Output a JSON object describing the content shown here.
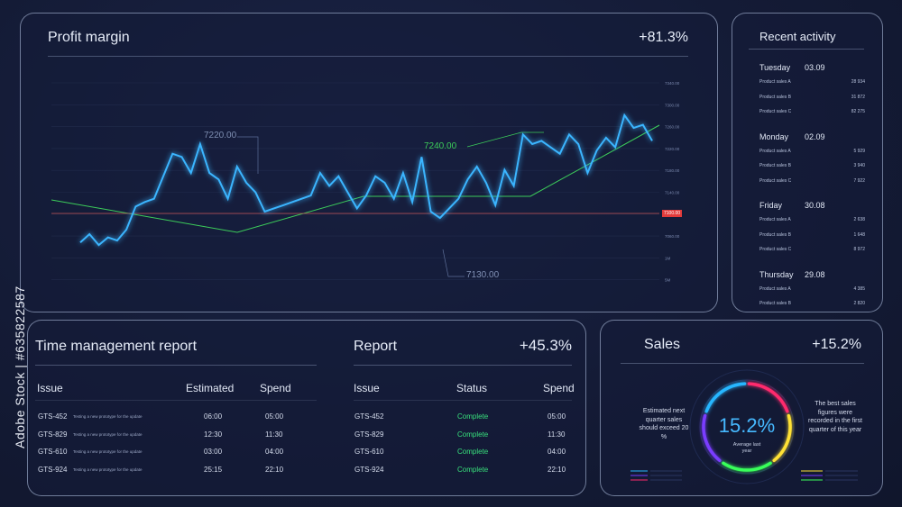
{
  "profit": {
    "title": "Profit margin",
    "value": "+81.3%",
    "annotations": {
      "high_left": "7220.00",
      "high_right": "7240.00",
      "low": "7130.00"
    },
    "yticks": [
      "7340.00",
      "7300.00",
      "7260.00",
      "7220.00",
      "7180.00",
      "7140.00",
      "7100.00",
      "7060.00",
      "1M",
      "5M"
    ],
    "current_price": "7100.00"
  },
  "chart_data": {
    "type": "line",
    "title": "Profit margin",
    "series": [
      {
        "values": [
          7082,
          7095,
          7078,
          7090,
          7085,
          7102,
          7138,
          7145,
          7150,
          7185,
          7220,
          7215,
          7190,
          7235,
          7190,
          7180,
          7150,
          7200,
          7175,
          7160,
          7130,
          7135,
          7140,
          7145,
          7150,
          7155,
          7190,
          7170,
          7185,
          7160,
          7135,
          7155,
          7185,
          7175,
          7150,
          7190,
          7145,
          7215,
          7130,
          7120,
          7135,
          7150,
          7180,
          7200,
          7175,
          7140,
          7195,
          7170,
          7250,
          7235,
          7240,
          7230,
          7220,
          7250,
          7235,
          7190,
          7225,
          7245,
          7230,
          7280,
          7260,
          7265,
          7240
        ]
      }
    ],
    "ylim": [
      7060,
      7340
    ],
    "grid": true
  },
  "recent": {
    "title": "Recent activity",
    "days": [
      {
        "day": "Tuesday",
        "date": "03.09",
        "rows": [
          [
            "Product sales A",
            "28 934"
          ],
          [
            "Product sales B",
            "31 872"
          ],
          [
            "Product sales C",
            "82 275"
          ]
        ]
      },
      {
        "day": "Monday",
        "date": "02.09",
        "rows": [
          [
            "Product sales A",
            "5 929"
          ],
          [
            "Product sales B",
            "3 940"
          ],
          [
            "Product sales C",
            "7 922"
          ]
        ]
      },
      {
        "day": "Friday",
        "date": "30.08",
        "rows": [
          [
            "Product sales A",
            "2 638"
          ],
          [
            "Product sales B",
            "1 648"
          ],
          [
            "Product sales C",
            "8 972"
          ]
        ]
      },
      {
        "day": "Thursday",
        "date": "29.08",
        "rows": [
          [
            "Product sales A",
            "4 385"
          ],
          [
            "Product sales B",
            "2 820"
          ]
        ]
      }
    ]
  },
  "time": {
    "title": "Time management report",
    "headers": {
      "issue": "Issue",
      "estimated": "Estimated",
      "spend": "Spend"
    },
    "rows": [
      {
        "issue": "GTS-452",
        "desc": "Testing a new prototype for the update",
        "estimated": "06:00",
        "spend": "05:00"
      },
      {
        "issue": "GTS-829",
        "desc": "Testing a new prototype for the update",
        "estimated": "12:30",
        "spend": "11:30"
      },
      {
        "issue": "GTS-610",
        "desc": "Testing a new prototype for the update",
        "estimated": "03:00",
        "spend": "04:00"
      },
      {
        "issue": "GTS-924",
        "desc": "Testing a new prototype for the update",
        "estimated": "25:15",
        "spend": "22:10"
      }
    ]
  },
  "report": {
    "title": "Report",
    "value": "+45.3%",
    "headers": {
      "issue": "Issue",
      "status": "Status",
      "spend": "Spend"
    },
    "rows": [
      {
        "issue": "GTS-452",
        "status": "Complete",
        "spend": "05:00"
      },
      {
        "issue": "GTS-829",
        "status": "Complete",
        "spend": "11:30"
      },
      {
        "issue": "GTS-610",
        "status": "Complete",
        "spend": "04:00"
      },
      {
        "issue": "GTS-924",
        "status": "Complete",
        "spend": "22:10"
      }
    ]
  },
  "sales": {
    "title": "Sales",
    "value": "+15.2%",
    "left_text": "Estimated next quarter sales should exceed 20 %",
    "right_text": "The best sales figures were recorded in the first quarter of this year",
    "gauge_value": "15.2%",
    "gauge_label": "Average last year",
    "ring_colors": [
      "#ff2a6d",
      "#ffe135",
      "#39ff5a",
      "#7a3cff",
      "#28b6ff"
    ]
  },
  "watermark": "Adobe Stock | #635822587"
}
